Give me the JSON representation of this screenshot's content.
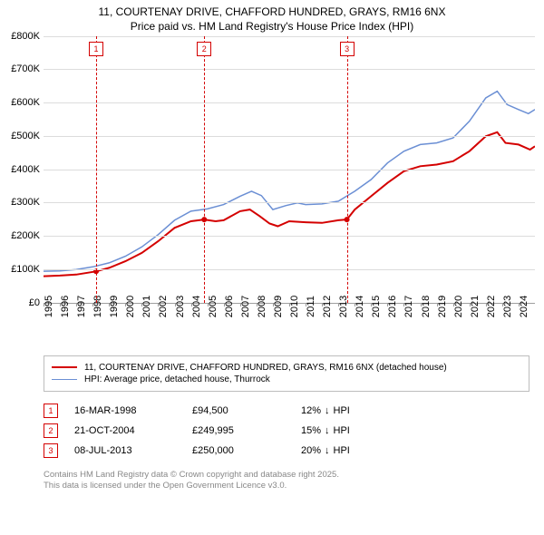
{
  "title_line1": "11, COURTENAY DRIVE, CHAFFORD HUNDRED, GRAYS, RM16 6NX",
  "title_line2": "Price paid vs. HM Land Registry's House Price Index (HPI)",
  "chart": {
    "type": "line",
    "background_color": "#ffffff",
    "grid_color": "#dcdcdc",
    "baseline_color": "#9e9e9e",
    "text_color": "#000000",
    "tick_fontsize": 11,
    "x_min_year": 1995,
    "x_max_year": 2025,
    "y_min": 0,
    "y_max": 800000,
    "y_tick_step": 100000,
    "y_tick_labels": [
      "£0",
      "£100K",
      "£200K",
      "£300K",
      "£400K",
      "£500K",
      "£600K",
      "£700K",
      "£800K"
    ],
    "x_tick_years": [
      1995,
      1996,
      1997,
      1998,
      1999,
      2000,
      2001,
      2002,
      2003,
      2004,
      2005,
      2006,
      2007,
      2008,
      2009,
      2010,
      2011,
      2012,
      2013,
      2014,
      2015,
      2016,
      2017,
      2018,
      2019,
      2020,
      2021,
      2022,
      2023,
      2024
    ],
    "series": [
      {
        "id": "price_paid",
        "color": "#d40000",
        "line_width": 2,
        "legend_label": "11, COURTENAY DRIVE, CHAFFORD HUNDRED, GRAYS, RM16 6NX (detached house)",
        "points": [
          [
            1995.0,
            80000
          ],
          [
            1996.0,
            82000
          ],
          [
            1997.0,
            85000
          ],
          [
            1998.2,
            94500
          ],
          [
            1999.0,
            105000
          ],
          [
            2000.0,
            125000
          ],
          [
            2001.0,
            150000
          ],
          [
            2002.0,
            185000
          ],
          [
            2003.0,
            225000
          ],
          [
            2004.0,
            245000
          ],
          [
            2004.8,
            249995
          ],
          [
            2005.5,
            245000
          ],
          [
            2006.0,
            248000
          ],
          [
            2007.0,
            275000
          ],
          [
            2007.6,
            280000
          ],
          [
            2008.2,
            260000
          ],
          [
            2008.8,
            238000
          ],
          [
            2009.3,
            230000
          ],
          [
            2010.0,
            245000
          ],
          [
            2011.0,
            242000
          ],
          [
            2012.0,
            240000
          ],
          [
            2013.0,
            248000
          ],
          [
            2013.52,
            250000
          ],
          [
            2014.0,
            280000
          ],
          [
            2015.0,
            320000
          ],
          [
            2016.0,
            360000
          ],
          [
            2017.0,
            395000
          ],
          [
            2018.0,
            410000
          ],
          [
            2019.0,
            415000
          ],
          [
            2020.0,
            425000
          ],
          [
            2021.0,
            455000
          ],
          [
            2022.0,
            500000
          ],
          [
            2022.7,
            512000
          ],
          [
            2023.2,
            480000
          ],
          [
            2024.0,
            475000
          ],
          [
            2024.7,
            460000
          ],
          [
            2025.0,
            470000
          ]
        ]
      },
      {
        "id": "hpi",
        "color": "#6b8fd4",
        "line_width": 1.5,
        "legend_label": "HPI: Average price, detached house, Thurrock",
        "points": [
          [
            1995.0,
            95000
          ],
          [
            1996.0,
            96000
          ],
          [
            1997.0,
            100000
          ],
          [
            1998.0,
            108000
          ],
          [
            1999.0,
            120000
          ],
          [
            2000.0,
            140000
          ],
          [
            2001.0,
            168000
          ],
          [
            2002.0,
            205000
          ],
          [
            2003.0,
            248000
          ],
          [
            2004.0,
            275000
          ],
          [
            2005.0,
            282000
          ],
          [
            2006.0,
            295000
          ],
          [
            2007.0,
            320000
          ],
          [
            2007.7,
            335000
          ],
          [
            2008.3,
            322000
          ],
          [
            2009.0,
            280000
          ],
          [
            2009.8,
            292000
          ],
          [
            2010.5,
            300000
          ],
          [
            2011.0,
            295000
          ],
          [
            2012.0,
            297000
          ],
          [
            2013.0,
            305000
          ],
          [
            2014.0,
            335000
          ],
          [
            2015.0,
            370000
          ],
          [
            2016.0,
            420000
          ],
          [
            2017.0,
            455000
          ],
          [
            2018.0,
            475000
          ],
          [
            2019.0,
            480000
          ],
          [
            2020.0,
            495000
          ],
          [
            2021.0,
            545000
          ],
          [
            2022.0,
            615000
          ],
          [
            2022.7,
            635000
          ],
          [
            2023.3,
            595000
          ],
          [
            2024.0,
            580000
          ],
          [
            2024.6,
            568000
          ],
          [
            2025.0,
            580000
          ]
        ]
      }
    ],
    "markers": [
      {
        "n": "1",
        "year": 1998.21,
        "plot_y": 50000
      },
      {
        "n": "2",
        "year": 2004.81,
        "plot_y": 50000
      },
      {
        "n": "3",
        "year": 2013.52,
        "plot_y": 50000
      }
    ],
    "marker_border_color": "#d40000",
    "marker_line_color": "#d40000"
  },
  "sales": [
    {
      "n": "1",
      "date": "16-MAR-1998",
      "price": "£94,500",
      "diff_pct": "12%",
      "diff_dir": "down",
      "diff_suffix": "HPI"
    },
    {
      "n": "2",
      "date": "21-OCT-2004",
      "price": "£249,995",
      "diff_pct": "15%",
      "diff_dir": "down",
      "diff_suffix": "HPI"
    },
    {
      "n": "3",
      "date": "08-JUL-2013",
      "price": "£250,000",
      "diff_pct": "20%",
      "diff_dir": "down",
      "diff_suffix": "HPI"
    }
  ],
  "attribution_line1": "Contains HM Land Registry data © Crown copyright and database right 2025.",
  "attribution_line2": "This data is licensed under the Open Government Licence v3.0.",
  "attribution_color": "#888888",
  "arrow_down_glyph": "↓"
}
